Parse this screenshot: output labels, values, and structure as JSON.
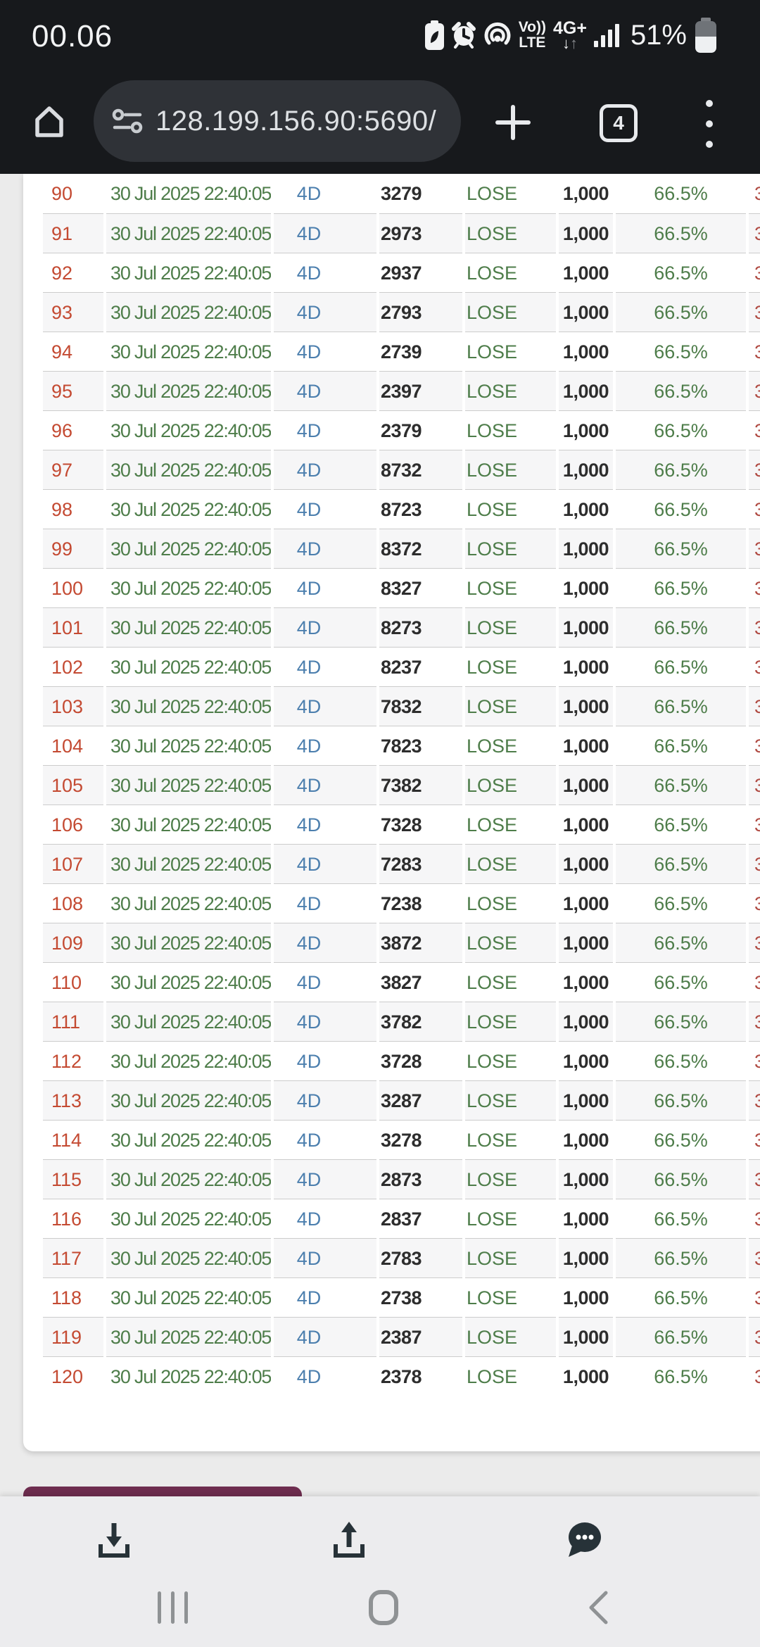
{
  "status_bar": {
    "time": "00.06",
    "battery_percent": "51%",
    "battery_level": 51,
    "volte_line1": "Vo))",
    "volte_line2": "LTE",
    "network_type": "4G+",
    "arrows_down": "↓",
    "arrows_up": "↑",
    "icons": [
      "battery-saver-icon",
      "alarm-icon",
      "hotspot-icon",
      "volte-badge",
      "network-4g-badge",
      "signal-strength-icon",
      "battery-icon"
    ]
  },
  "browser": {
    "url": "128.199.156.90:5690/",
    "tab_count": "4",
    "icons": [
      "home-icon",
      "site-settings-icon",
      "new-tab-icon",
      "tab-switcher",
      "menu-kebab-icon"
    ]
  },
  "table": {
    "visible_columns": [
      "row_number",
      "datetime",
      "game",
      "bet_number",
      "result",
      "bet_amount",
      "percent",
      "clipped_column"
    ],
    "repeated_values": {
      "datetime": "30 Jul 2025 22:40:05",
      "game": "4D",
      "result": "LOSE",
      "bet_amount": "1,000",
      "percent": "66.5%"
    },
    "overflow_text_sliver": "3",
    "rows": [
      {
        "no": "90",
        "number": "3279"
      },
      {
        "no": "91",
        "number": "2973"
      },
      {
        "no": "92",
        "number": "2937"
      },
      {
        "no": "93",
        "number": "2793"
      },
      {
        "no": "94",
        "number": "2739"
      },
      {
        "no": "95",
        "number": "2397"
      },
      {
        "no": "96",
        "number": "2379"
      },
      {
        "no": "97",
        "number": "8732"
      },
      {
        "no": "98",
        "number": "8723"
      },
      {
        "no": "99",
        "number": "8372"
      },
      {
        "no": "100",
        "number": "8327"
      },
      {
        "no": "101",
        "number": "8273"
      },
      {
        "no": "102",
        "number": "8237"
      },
      {
        "no": "103",
        "number": "7832"
      },
      {
        "no": "104",
        "number": "7823"
      },
      {
        "no": "105",
        "number": "7382"
      },
      {
        "no": "106",
        "number": "7328"
      },
      {
        "no": "107",
        "number": "7283"
      },
      {
        "no": "108",
        "number": "7238"
      },
      {
        "no": "109",
        "number": "3872"
      },
      {
        "no": "110",
        "number": "3827"
      },
      {
        "no": "111",
        "number": "3782"
      },
      {
        "no": "112",
        "number": "3728"
      },
      {
        "no": "113",
        "number": "3287"
      },
      {
        "no": "114",
        "number": "3278"
      },
      {
        "no": "115",
        "number": "2873"
      },
      {
        "no": "116",
        "number": "2837"
      },
      {
        "no": "117",
        "number": "2783"
      },
      {
        "no": "118",
        "number": "2738"
      },
      {
        "no": "119",
        "number": "2387"
      },
      {
        "no": "120",
        "number": "2378"
      }
    ]
  },
  "footer": {
    "partial_button_color": "#6e2d4f",
    "toolbar_icons": [
      "download-icon",
      "share-icon",
      "chat-icon"
    ],
    "nav_icons": [
      "recents-icon",
      "home-nav-icon",
      "back-icon"
    ]
  },
  "colors": {
    "top_bar_bg": "#17191c",
    "url_pill_bg": "#2f3237",
    "page_bg": "#ebebeb",
    "card_bg": "#ffffff",
    "stripe_bg": "#f6f6f7",
    "row_border": "#cccccc",
    "index_red": "#c44a32",
    "green": "#4e7d4a",
    "blue": "#4c7fae",
    "dark_text": "#2d2d2d",
    "clipped_red": "#b04a42",
    "bottom_bar_bg": "#ececee",
    "nav_icon_gray": "#8f9294",
    "tool_icon_dark": "#273238"
  }
}
